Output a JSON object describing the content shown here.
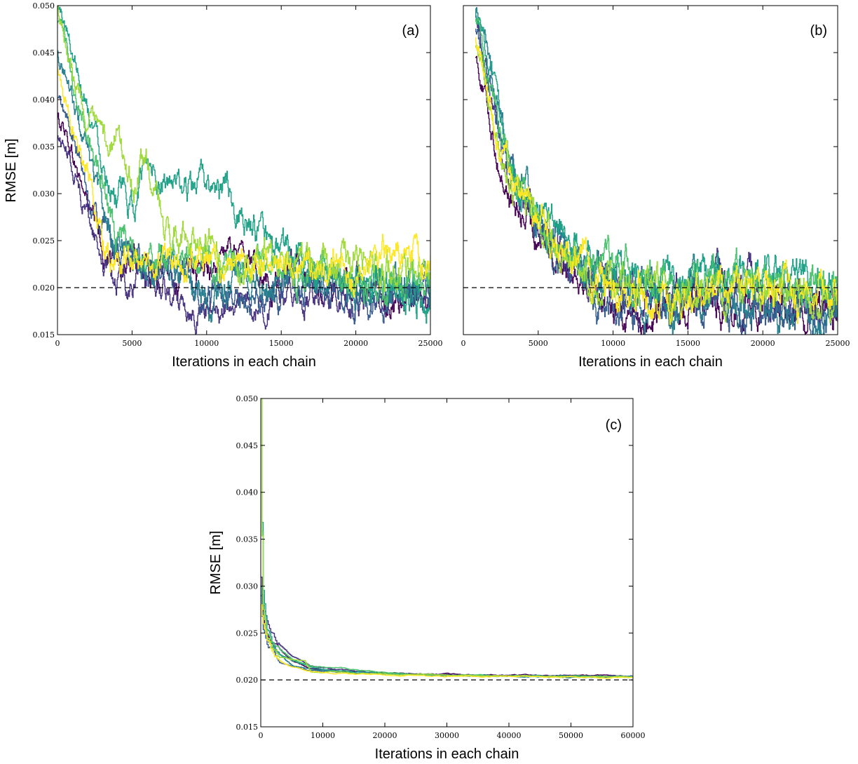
{
  "chart_data": [
    {
      "panel_label": "(a)",
      "type": "line",
      "xlabel": "Iterations in each chain",
      "ylabel": "RMSE [m]",
      "xlim": [
        0,
        25000
      ],
      "ylim": [
        0.015,
        0.05
      ],
      "xticks": [
        0,
        5000,
        10000,
        15000,
        20000,
        25000
      ],
      "xtick_labels": [
        "0",
        "5000",
        "10000",
        "15000",
        "20000",
        "25000"
      ],
      "yticks": [
        0.015,
        0.02,
        0.025,
        0.03,
        0.035,
        0.04,
        0.045,
        0.05
      ],
      "ytick_labels": [
        "0.015",
        "0.020",
        "0.025",
        "0.030",
        "0.035",
        "0.040",
        "0.045",
        "0.050"
      ],
      "reference_line": 0.02,
      "grid": false,
      "series": [
        {
          "color": "#440154",
          "x": [
            0,
            500,
            1000,
            2000,
            3000,
            4000,
            6000,
            8000,
            10000,
            12000,
            14000,
            16000,
            18000,
            20000,
            22000,
            24000,
            25000
          ],
          "y": [
            0.038,
            0.037,
            0.034,
            0.029,
            0.024,
            0.023,
            0.022,
            0.021,
            0.022,
            0.024,
            0.021,
            0.021,
            0.02,
            0.02,
            0.019,
            0.019,
            0.019
          ]
        },
        {
          "color": "#46327e",
          "x": [
            0,
            500,
            1000,
            2000,
            3000,
            4000,
            6000,
            8000,
            10000,
            12000,
            14000,
            16000,
            18000,
            20000,
            22000,
            24000,
            25000
          ],
          "y": [
            0.036,
            0.035,
            0.033,
            0.028,
            0.023,
            0.021,
            0.02,
            0.019,
            0.0175,
            0.0178,
            0.0185,
            0.019,
            0.0195,
            0.019,
            0.0192,
            0.019,
            0.0195
          ]
        },
        {
          "color": "#365c8d",
          "x": [
            0,
            500,
            1000,
            2000,
            3000,
            4000,
            6000,
            8000,
            10000,
            12000,
            14000,
            16000,
            18000,
            20000,
            22000,
            24000,
            25000
          ],
          "y": [
            0.04,
            0.038,
            0.036,
            0.03,
            0.026,
            0.024,
            0.022,
            0.021,
            0.0195,
            0.0185,
            0.019,
            0.02,
            0.0195,
            0.019,
            0.0192,
            0.0188,
            0.019
          ]
        },
        {
          "color": "#277f8e",
          "x": [
            0,
            500,
            1000,
            2000,
            3000,
            4000,
            6000,
            8000,
            10000,
            12000,
            14000,
            16000,
            18000,
            20000,
            22000,
            24000,
            25000
          ],
          "y": [
            0.045,
            0.043,
            0.04,
            0.034,
            0.028,
            0.025,
            0.023,
            0.022,
            0.0185,
            0.021,
            0.021,
            0.02,
            0.021,
            0.02,
            0.0205,
            0.019,
            0.0195
          ]
        },
        {
          "color": "#1fa187",
          "x": [
            0,
            500,
            1000,
            2000,
            3000,
            4000,
            5000,
            6000,
            8000,
            10000,
            12000,
            14000,
            16000,
            18000,
            20000,
            22000,
            24000,
            25000
          ],
          "y": [
            0.05,
            0.048,
            0.045,
            0.04,
            0.034,
            0.03,
            0.028,
            0.034,
            0.03,
            0.031,
            0.029,
            0.024,
            0.023,
            0.022,
            0.021,
            0.021,
            0.02,
            0.02
          ]
        },
        {
          "color": "#4ac16d",
          "x": [
            0,
            500,
            1000,
            2000,
            3000,
            4000,
            6000,
            8000,
            10000,
            12000,
            14000,
            16000,
            18000,
            20000,
            22000,
            24000,
            25000
          ],
          "y": [
            0.048,
            0.046,
            0.042,
            0.037,
            0.031,
            0.026,
            0.024,
            0.023,
            0.023,
            0.022,
            0.022,
            0.021,
            0.022,
            0.021,
            0.02,
            0.021,
            0.021
          ]
        },
        {
          "color": "#9fda3a",
          "x": [
            0,
            500,
            1000,
            2000,
            3000,
            4000,
            5000,
            6000,
            7000,
            8000,
            10000,
            12000,
            14000,
            16000,
            18000,
            20000,
            22000,
            24000,
            25000
          ],
          "y": [
            0.05,
            0.047,
            0.043,
            0.038,
            0.035,
            0.036,
            0.031,
            0.033,
            0.027,
            0.025,
            0.024,
            0.023,
            0.023,
            0.022,
            0.022,
            0.023,
            0.022,
            0.022,
            0.021
          ]
        },
        {
          "color": "#fde725",
          "x": [
            0,
            500,
            1000,
            2000,
            3000,
            4000,
            6000,
            8000,
            10000,
            12000,
            14000,
            16000,
            18000,
            20000,
            22000,
            24000,
            25000
          ],
          "y": [
            0.043,
            0.04,
            0.037,
            0.033,
            0.025,
            0.023,
            0.022,
            0.023,
            0.024,
            0.022,
            0.023,
            0.022,
            0.023,
            0.022,
            0.024,
            0.023,
            0.022
          ]
        }
      ]
    },
    {
      "panel_label": "(b)",
      "type": "line",
      "xlabel": "Iterations in each chain",
      "ylabel": "",
      "xlim": [
        0,
        25000
      ],
      "ylim": [
        0.015,
        0.05
      ],
      "xticks": [
        0,
        5000,
        10000,
        15000,
        20000,
        25000
      ],
      "xtick_labels": [
        "0",
        "5000",
        "10000",
        "15000",
        "20000",
        "25000"
      ],
      "yticks": [
        0.015,
        0.02,
        0.025,
        0.03,
        0.035,
        0.04,
        0.045,
        0.05
      ],
      "ytick_labels": [],
      "reference_line": 0.02,
      "grid": false,
      "series": [
        {
          "color": "#440154",
          "x": [
            800,
            1500,
            2500,
            3500,
            5000,
            6000,
            7000,
            8000,
            9000,
            10000,
            11000,
            12000,
            13000,
            14000,
            16000,
            18000,
            20000,
            22000,
            24000,
            25000
          ],
          "y": [
            0.045,
            0.04,
            0.032,
            0.028,
            0.026,
            0.024,
            0.023,
            0.022,
            0.02,
            0.019,
            0.0175,
            0.0165,
            0.017,
            0.018,
            0.019,
            0.018,
            0.0185,
            0.0175,
            0.0172,
            0.017
          ]
        },
        {
          "color": "#46327e",
          "x": [
            800,
            1500,
            2500,
            3500,
            5000,
            6000,
            7000,
            8000,
            9000,
            10000,
            12000,
            14000,
            16000,
            18000,
            20000,
            22000,
            24000,
            25000
          ],
          "y": [
            0.05,
            0.044,
            0.035,
            0.03,
            0.027,
            0.025,
            0.023,
            0.021,
            0.0205,
            0.02,
            0.0185,
            0.019,
            0.02,
            0.0205,
            0.0195,
            0.019,
            0.0185,
            0.018
          ]
        },
        {
          "color": "#365c8d",
          "x": [
            800,
            1500,
            2500,
            3500,
            5000,
            6000,
            7000,
            8000,
            9000,
            10000,
            12000,
            14000,
            16000,
            18000,
            20000,
            22000,
            24000,
            25000
          ],
          "y": [
            0.048,
            0.043,
            0.036,
            0.031,
            0.026,
            0.024,
            0.022,
            0.02,
            0.018,
            0.0175,
            0.0185,
            0.019,
            0.0185,
            0.018,
            0.0178,
            0.0175,
            0.017,
            0.0175
          ]
        },
        {
          "color": "#277f8e",
          "x": [
            800,
            1500,
            2500,
            3500,
            5000,
            6000,
            7000,
            8000,
            9000,
            10000,
            12000,
            14000,
            16000,
            18000,
            20000,
            22000,
            24000,
            25000
          ],
          "y": [
            0.05,
            0.046,
            0.038,
            0.032,
            0.028,
            0.026,
            0.024,
            0.022,
            0.021,
            0.02,
            0.019,
            0.0185,
            0.019,
            0.019,
            0.018,
            0.018,
            0.017,
            0.018
          ]
        },
        {
          "color": "#1fa187",
          "x": [
            800,
            1500,
            2500,
            3500,
            5000,
            6000,
            7000,
            8000,
            9000,
            10000,
            12000,
            14000,
            16000,
            18000,
            20000,
            22000,
            24000,
            25000
          ],
          "y": [
            0.05,
            0.045,
            0.037,
            0.032,
            0.028,
            0.027,
            0.025,
            0.023,
            0.022,
            0.0215,
            0.021,
            0.0205,
            0.021,
            0.0215,
            0.021,
            0.021,
            0.0205,
            0.02
          ]
        },
        {
          "color": "#4ac16d",
          "x": [
            800,
            1500,
            2500,
            3500,
            5000,
            6000,
            7000,
            8000,
            9000,
            10000,
            12000,
            14000,
            16000,
            18000,
            20000,
            22000,
            24000,
            25000
          ],
          "y": [
            0.049,
            0.044,
            0.036,
            0.031,
            0.027,
            0.025,
            0.024,
            0.023,
            0.022,
            0.022,
            0.021,
            0.02,
            0.0205,
            0.021,
            0.02,
            0.0205,
            0.02,
            0.0195
          ]
        },
        {
          "color": "#9fda3a",
          "x": [
            800,
            1500,
            2500,
            3500,
            5000,
            6000,
            7000,
            8000,
            9000,
            10000,
            12000,
            14000,
            16000,
            18000,
            20000,
            22000,
            24000,
            25000
          ],
          "y": [
            0.046,
            0.041,
            0.034,
            0.03,
            0.027,
            0.025,
            0.023,
            0.022,
            0.021,
            0.021,
            0.0205,
            0.0195,
            0.0195,
            0.019,
            0.0195,
            0.019,
            0.0185,
            0.019
          ]
        },
        {
          "color": "#fde725",
          "x": [
            800,
            1500,
            2500,
            3500,
            5000,
            6000,
            7000,
            8000,
            9000,
            10000,
            12000,
            14000,
            16000,
            18000,
            20000,
            22000,
            24000,
            25000
          ],
          "y": [
            0.047,
            0.042,
            0.035,
            0.031,
            0.026,
            0.025,
            0.024,
            0.023,
            0.021,
            0.02,
            0.019,
            0.018,
            0.0195,
            0.0195,
            0.0198,
            0.0195,
            0.02,
            0.0195
          ]
        }
      ]
    },
    {
      "panel_label": "(c)",
      "type": "line",
      "xlabel": "Iterations in each chain",
      "ylabel": "RMSE [m]",
      "xlim": [
        0,
        60000
      ],
      "ylim": [
        0.015,
        0.05
      ],
      "xticks": [
        0,
        10000,
        20000,
        30000,
        40000,
        50000,
        60000
      ],
      "xtick_labels": [
        "0",
        "10000",
        "20000",
        "30000",
        "40000",
        "50000",
        "60000"
      ],
      "yticks": [
        0.015,
        0.02,
        0.025,
        0.03,
        0.035,
        0.04,
        0.045,
        0.05
      ],
      "ytick_labels": [
        "0.015",
        "0.020",
        "0.025",
        "0.030",
        "0.035",
        "0.040",
        "0.045",
        "0.050"
      ],
      "reference_line": 0.02,
      "grid": false,
      "series": [
        {
          "color": "#440154",
          "x": [
            0,
            300,
            1000,
            2000,
            3000,
            5000,
            8000,
            12000,
            20000,
            30000,
            40000,
            50000,
            60000
          ],
          "y": [
            0.03,
            0.027,
            0.025,
            0.024,
            0.023,
            0.022,
            0.0212,
            0.021,
            0.0207,
            0.0206,
            0.0205,
            0.0205,
            0.0204
          ]
        },
        {
          "color": "#46327e",
          "x": [
            0,
            300,
            1000,
            2000,
            3000,
            5000,
            8000,
            12000,
            20000,
            30000,
            40000,
            50000,
            60000
          ],
          "y": [
            0.031,
            0.028,
            0.026,
            0.025,
            0.024,
            0.0225,
            0.0215,
            0.0211,
            0.0207,
            0.0206,
            0.0205,
            0.0204,
            0.0204
          ]
        },
        {
          "color": "#365c8d",
          "x": [
            0,
            300,
            1000,
            2000,
            3000,
            5000,
            8000,
            12000,
            20000,
            30000,
            40000,
            50000,
            60000
          ],
          "y": [
            0.029,
            0.026,
            0.024,
            0.023,
            0.022,
            0.0215,
            0.021,
            0.0208,
            0.0206,
            0.0205,
            0.0204,
            0.0204,
            0.0203
          ]
        },
        {
          "color": "#277f8e",
          "x": [
            0,
            300,
            1000,
            2000,
            3000,
            5000,
            8000,
            12000,
            20000,
            30000,
            40000,
            50000,
            60000
          ],
          "y": [
            0.03,
            0.026,
            0.0245,
            0.0235,
            0.0225,
            0.0215,
            0.0211,
            0.0209,
            0.0206,
            0.0205,
            0.0204,
            0.0203,
            0.0203
          ]
        },
        {
          "color": "#1fa187",
          "x": [
            0,
            300,
            1000,
            2000,
            3000,
            5000,
            8000,
            12000,
            20000,
            30000,
            40000,
            50000,
            60000
          ],
          "y": [
            0.05,
            0.03,
            0.025,
            0.0235,
            0.0228,
            0.022,
            0.0214,
            0.021,
            0.0207,
            0.0205,
            0.0204,
            0.0204,
            0.0204
          ]
        },
        {
          "color": "#4ac16d",
          "x": [
            0,
            300,
            1000,
            2000,
            3000,
            5000,
            8000,
            12000,
            14000,
            20000,
            30000,
            40000,
            50000,
            60000
          ],
          "y": [
            0.05,
            0.029,
            0.025,
            0.0238,
            0.023,
            0.0222,
            0.0215,
            0.0213,
            0.0212,
            0.0207,
            0.0205,
            0.0204,
            0.0204,
            0.0203
          ]
        },
        {
          "color": "#9fda3a",
          "x": [
            0,
            300,
            1000,
            2000,
            3000,
            5000,
            7000,
            8000,
            12000,
            20000,
            30000,
            40000,
            50000,
            60000
          ],
          "y": [
            0.05,
            0.028,
            0.0245,
            0.0232,
            0.0225,
            0.0222,
            0.022,
            0.0208,
            0.0208,
            0.0206,
            0.0205,
            0.0204,
            0.0203,
            0.0203
          ]
        },
        {
          "color": "#fde725",
          "x": [
            0,
            300,
            1000,
            2000,
            3000,
            5000,
            8000,
            12000,
            20000,
            30000,
            40000,
            50000,
            60000
          ],
          "y": [
            0.028,
            0.026,
            0.0238,
            0.0228,
            0.022,
            0.0213,
            0.0209,
            0.0207,
            0.0205,
            0.0204,
            0.0204,
            0.0203,
            0.0203
          ]
        }
      ]
    }
  ]
}
